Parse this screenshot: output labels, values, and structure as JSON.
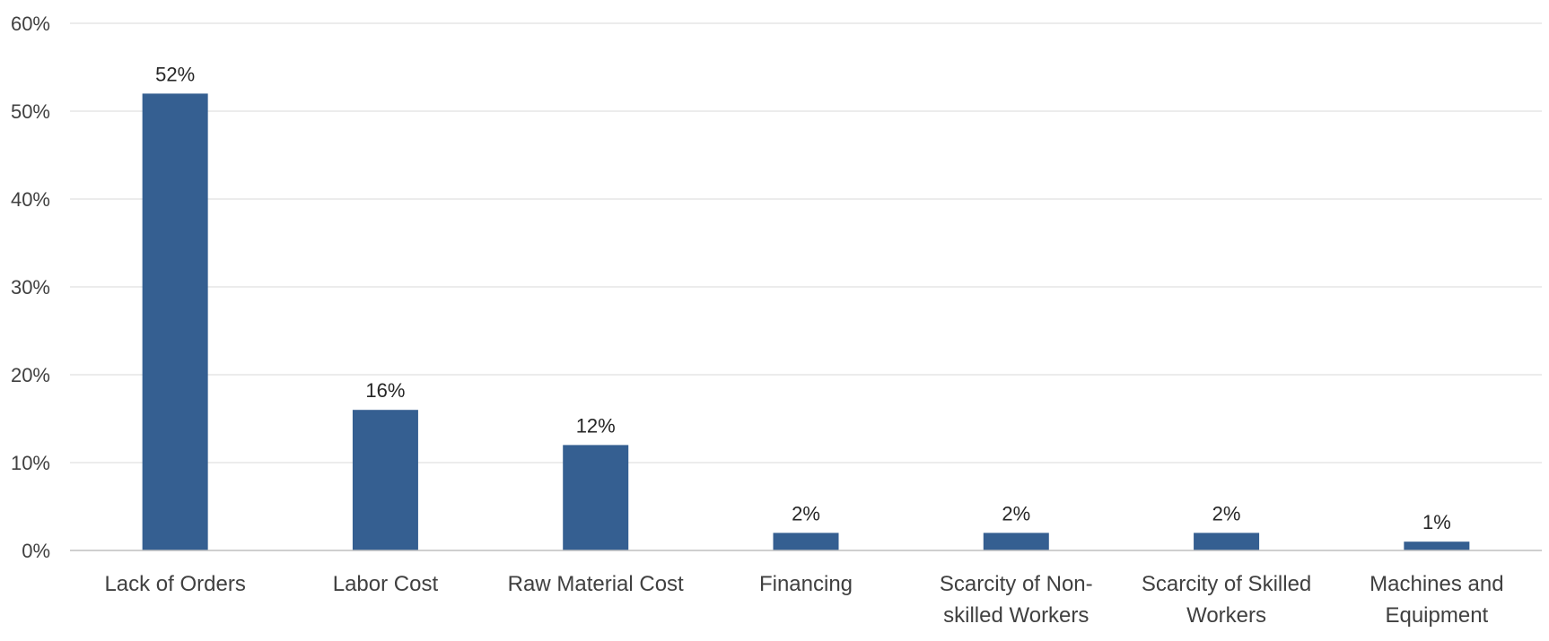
{
  "chart_data": {
    "type": "bar",
    "categories": [
      [
        "Lack of Orders"
      ],
      [
        "Labor Cost"
      ],
      [
        "Raw Material Cost"
      ],
      [
        "Financing"
      ],
      [
        "Scarcity of Non-",
        "skilled Workers"
      ],
      [
        "Scarcity of Skilled",
        "Workers"
      ],
      [
        "Machines and",
        "Equipment"
      ]
    ],
    "values": [
      52,
      16,
      12,
      2,
      2,
      2,
      1
    ],
    "data_labels": [
      "52%",
      "16%",
      "12%",
      "2%",
      "2%",
      "2%",
      "1%"
    ],
    "yticks": [
      0,
      10,
      20,
      30,
      40,
      50,
      60
    ],
    "ytick_labels": [
      "0%",
      "10%",
      "20%",
      "30%",
      "40%",
      "50%",
      "60%"
    ],
    "ylim": [
      0,
      60
    ],
    "title": "",
    "xlabel": "",
    "ylabel": "",
    "grid": true,
    "legend": "none",
    "bar_color": "#355f91"
  }
}
